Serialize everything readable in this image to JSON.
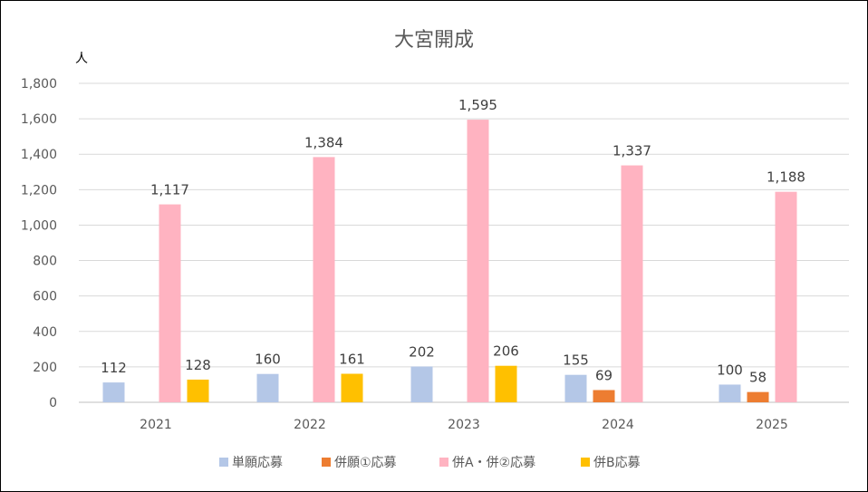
{
  "chart_data": {
    "type": "bar",
    "title": "大宮開成",
    "unit": "人",
    "categories": [
      "2021",
      "2022",
      "2023",
      "2024",
      "2025"
    ],
    "series": [
      {
        "name": "単願応募",
        "color": "#B4C7E7",
        "values": [
          112,
          160,
          202,
          155,
          100
        ]
      },
      {
        "name": "併願①応募",
        "color": "#ED7D31",
        "values": [
          null,
          null,
          null,
          69,
          58
        ]
      },
      {
        "name": "併A・併②応募",
        "color": "#FFB3C1",
        "values": [
          1117,
          1384,
          1595,
          1337,
          1188
        ]
      },
      {
        "name": "併B応募",
        "color": "#FFC000",
        "values": [
          128,
          161,
          206,
          null,
          null
        ]
      }
    ],
    "ylim": [
      0,
      1800
    ],
    "yticks": [
      0,
      200,
      400,
      600,
      800,
      1000,
      1200,
      1400,
      1600,
      1800
    ],
    "ytick_labels": [
      "0",
      "200",
      "400",
      "600",
      "800",
      "1,000",
      "1,200",
      "1,400",
      "1,600",
      "1,800"
    ],
    "data_labels": [
      [
        "112",
        "160",
        "202",
        "155",
        "100"
      ],
      [
        null,
        null,
        null,
        "69",
        "58"
      ],
      [
        "1,117",
        "1,384",
        "1,595",
        "1,337",
        "1,188"
      ],
      [
        "128",
        "161",
        "206",
        null,
        null
      ]
    ],
    "grid": true,
    "legend_position": "bottom"
  }
}
